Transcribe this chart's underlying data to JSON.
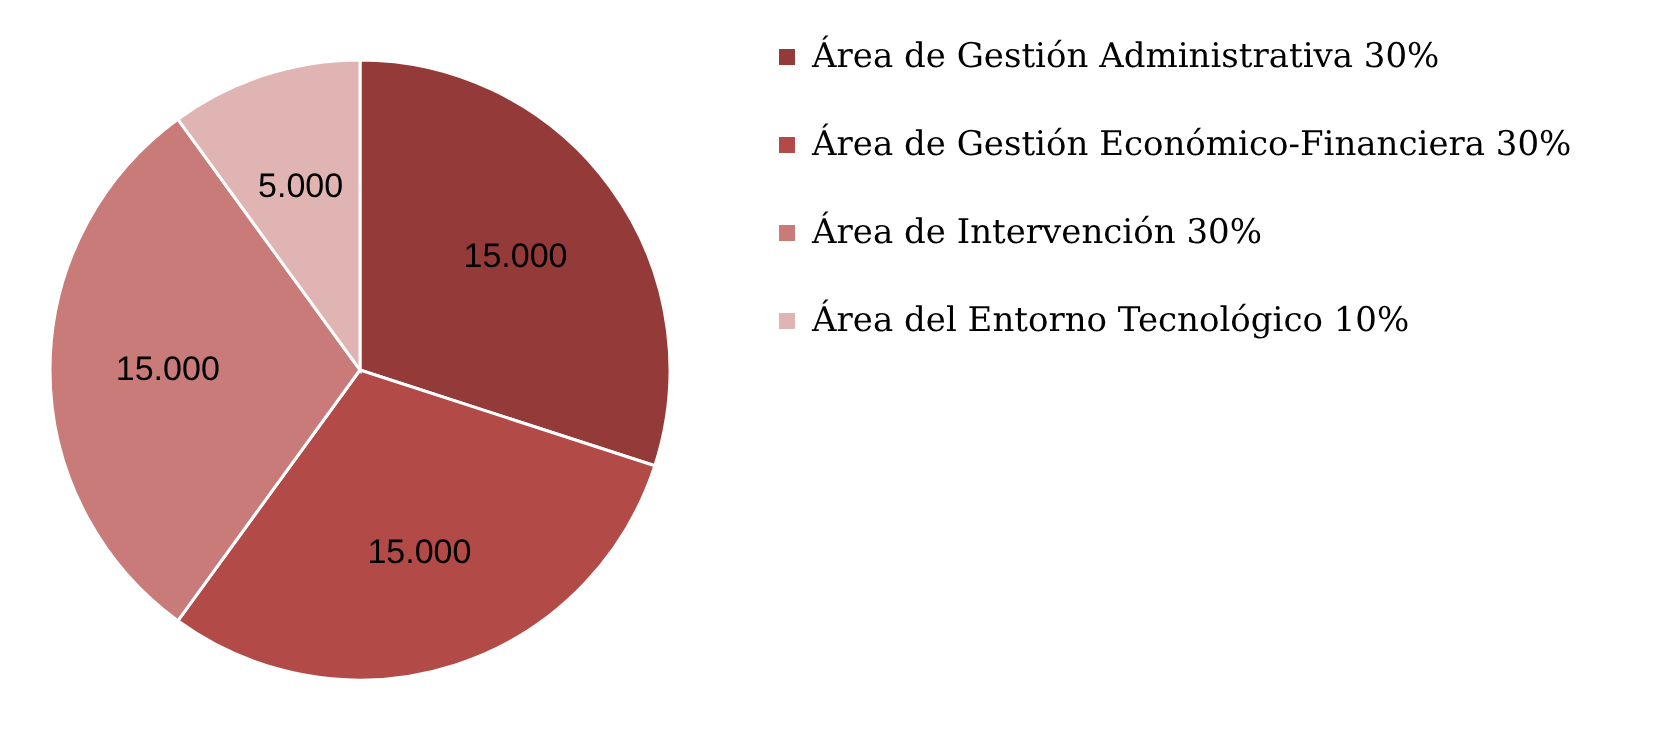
{
  "chart_data": {
    "type": "pie",
    "categories": [
      "Área de Gestión Administrativa  30%",
      "Área de Gestión Económico-Financiera  30%",
      "Área de Intervención  30%",
      "Área del Entorno Tecnológico  10%"
    ],
    "values": [
      15000,
      15000,
      15000,
      5000
    ],
    "value_labels": [
      "15.000",
      "15.000",
      "15.000",
      "5.000"
    ],
    "colors": [
      "#943b3a",
      "#b24a48",
      "#c97b7a",
      "#dfb4b3"
    ],
    "legend": "right"
  }
}
